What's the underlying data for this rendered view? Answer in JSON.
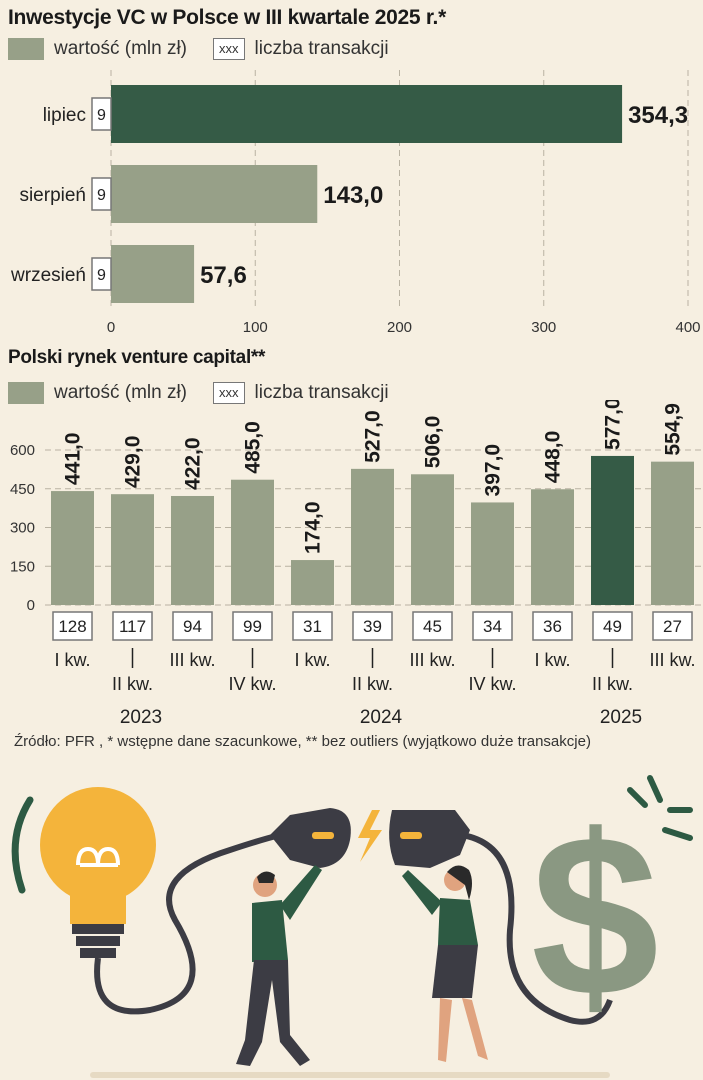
{
  "chart_data": [
    {
      "type": "bar",
      "orientation": "horizontal",
      "title": "Inwestycje VC w Polsce w III kwartale 2025 r.*",
      "legend": {
        "value_label": "wartość (mln zł)",
        "count_box": "xxx",
        "count_label": "liczba transakcji"
      },
      "categories": [
        "lipiec",
        "sierpień",
        "wrzesień"
      ],
      "values": [
        354.3,
        143.0,
        57.6
      ],
      "value_labels": [
        "354,3",
        "143,0",
        "57,6"
      ],
      "transactions": [
        "9",
        "9",
        "9"
      ],
      "highlight_index": 0,
      "xlim": [
        0,
        400
      ],
      "x_ticks": [
        "0",
        "100",
        "200",
        "300",
        "400"
      ],
      "grid": true
    },
    {
      "type": "bar",
      "orientation": "vertical",
      "title": "Polski rynek venture capital**",
      "legend": {
        "value_label": "wartość (mln zł)",
        "count_box": "xxx",
        "count_label": "liczba transakcji"
      },
      "categories": [
        "I kw.",
        "II kw.",
        "III kw.",
        "IV kw.",
        "I kw.",
        "II kw.",
        "III kw.",
        "IV kw.",
        "I kw.",
        "II kw.",
        "III kw."
      ],
      "values": [
        441.0,
        429.0,
        422.0,
        485.0,
        174.0,
        527.0,
        506.0,
        397.0,
        448.0,
        577.0,
        554.9
      ],
      "value_labels": [
        "441,0",
        "429,0",
        "422,0",
        "485,0",
        "174,0",
        "527,0",
        "506,0",
        "397,0",
        "448,0",
        "577,0",
        "554,9"
      ],
      "transactions": [
        "128",
        "117",
        "94",
        "99",
        "31",
        "39",
        "45",
        "34",
        "36",
        "49",
        "27"
      ],
      "highlight_index": 9,
      "years": [
        "2023",
        "2024",
        "2025"
      ],
      "ylim": [
        0,
        600
      ],
      "y_ticks": [
        "0",
        "150",
        "300",
        "450",
        "600"
      ],
      "grid": true
    }
  ],
  "colors": {
    "bar": "#97a088",
    "highlight": "#355b46",
    "background": "#f6efe1"
  },
  "source": "Źródło: PFR , * wstępne dane szacunkowe, ** bez outliers (wyjątkowo duże transakcje)",
  "illustration": {
    "icons": [
      "lightbulb-icon",
      "plug-icon",
      "dollar-sign-icon",
      "lightning-icon"
    ]
  }
}
